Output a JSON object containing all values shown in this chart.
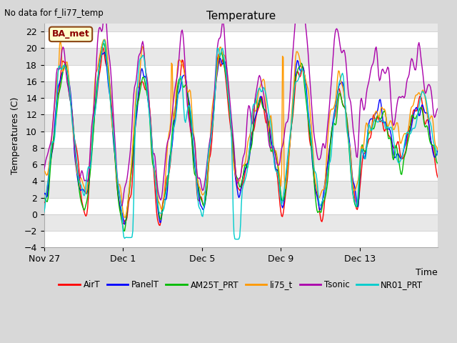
{
  "title": "Temperature",
  "xlabel": "Time",
  "ylabel": "Temperatures (C)",
  "no_data_text": "No data for f_li77_temp",
  "ba_met_label": "BA_met",
  "ylim": [
    -4,
    23
  ],
  "yticks": [
    -4,
    -2,
    0,
    2,
    4,
    6,
    8,
    10,
    12,
    14,
    16,
    18,
    20,
    22
  ],
  "x_tick_labels": [
    "Nov 27",
    "Dec 1",
    "Dec 5",
    "Dec 9",
    "Dec 13"
  ],
  "x_tick_positions": [
    0,
    96,
    192,
    288,
    384
  ],
  "total_points": 480,
  "series_colors": {
    "AirT": "#ff0000",
    "PanelT": "#0000ff",
    "AM25T_PRT": "#00bb00",
    "li75_t": "#ff9900",
    "Tsonic": "#aa00aa",
    "NR01_PRT": "#00cccc"
  },
  "legend_order": [
    "AirT",
    "PanelT",
    "AM25T_PRT",
    "li75_t",
    "Tsonic",
    "NR01_PRT"
  ],
  "bg_color": "#d8d8d8",
  "plot_bg_white": "#ffffff",
  "plot_bg_gray": "#e8e8e8",
  "grid_color": "#cccccc",
  "seed": 42
}
